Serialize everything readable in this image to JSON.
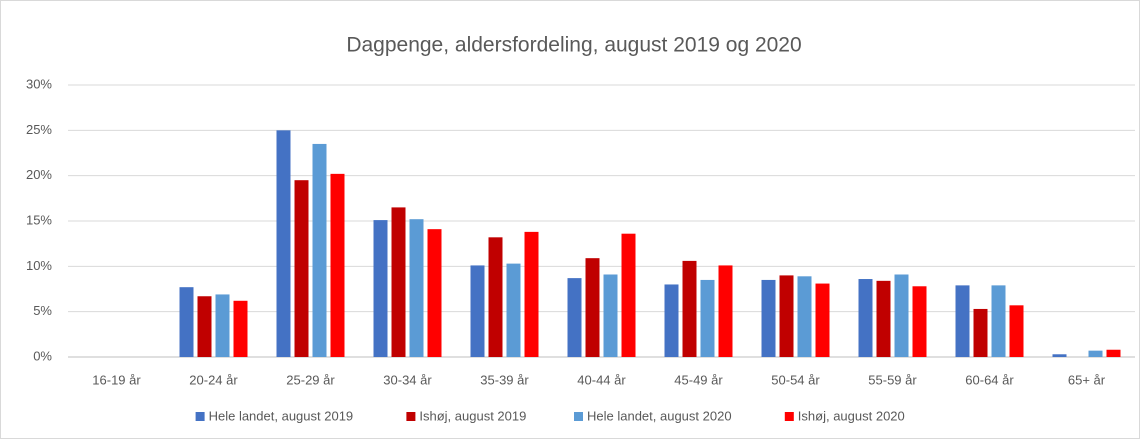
{
  "chart_data": {
    "type": "bar",
    "title": "Dagpenge, aldersfordeling, august 2019 og 2020",
    "categories": [
      "16-19 år",
      "20-24 år",
      "25-29 år",
      "30-34 år",
      "35-39 år",
      "40-44 år",
      "45-49 år",
      "50-54 år",
      "55-59 år",
      "60-64 år",
      "65+ år"
    ],
    "series": [
      {
        "name": "Hele landet, august 2019",
        "color": "#4472c4",
        "values": [
          0,
          7.7,
          25.0,
          15.1,
          10.1,
          8.7,
          8.0,
          8.5,
          8.6,
          7.9,
          0.3
        ]
      },
      {
        "name": "Ishøj, august 2019",
        "color": "#c00000",
        "values": [
          0,
          6.7,
          19.5,
          16.5,
          13.2,
          10.9,
          10.6,
          9.0,
          8.4,
          5.3,
          0
        ]
      },
      {
        "name": "Hele landet, august 2020",
        "color": "#5b9bd5",
        "values": [
          0,
          6.9,
          23.5,
          15.2,
          10.3,
          9.1,
          8.5,
          8.9,
          9.1,
          7.9,
          0.7
        ]
      },
      {
        "name": "Ishøj, august 2020",
        "color": "#ff0000",
        "values": [
          0,
          6.2,
          20.2,
          14.1,
          13.8,
          13.6,
          10.1,
          8.1,
          7.8,
          5.7,
          0.8
        ]
      }
    ],
    "ylim": [
      0,
      30
    ],
    "yticks": [
      {
        "value": 0,
        "label": "0%"
      },
      {
        "value": 5,
        "label": "5%"
      },
      {
        "value": 10,
        "label": "10%"
      },
      {
        "value": 15,
        "label": "15%"
      },
      {
        "value": 20,
        "label": "20%"
      },
      {
        "value": 25,
        "label": "25%"
      },
      {
        "value": 30,
        "label": "30%"
      }
    ],
    "grid": true,
    "legend": "bottom"
  }
}
